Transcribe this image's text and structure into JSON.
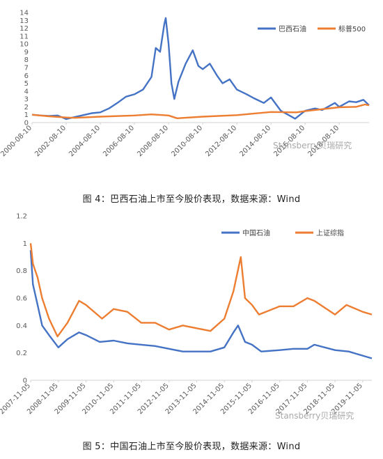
{
  "chart_data": [
    {
      "type": "line",
      "caption": "图 4：巴西石油上市至今股价表现，数据来源：Wind",
      "watermark": "Stansberry贝瑞研究",
      "xlabel": "",
      "ylabel": "",
      "ylim": [
        0,
        14
      ],
      "yticks": [
        0,
        1,
        2,
        3,
        4,
        5,
        6,
        7,
        8,
        9,
        10,
        11,
        12,
        13,
        14
      ],
      "xlim": [
        "2000-08-10",
        "2020-05-10"
      ],
      "xticks": [
        "2000-08-10",
        "2002-08-10",
        "2004-08-10",
        "2006-08-10",
        "2008-08-10",
        "2010-08-10",
        "2012-08-10",
        "2014-08-10",
        "2016-08-10",
        "2018-08-10"
      ],
      "grid": false,
      "legend_position": "top-right",
      "series": [
        {
          "name": "巴西石油",
          "color": "#4472C4",
          "points": [
            [
              "2000-08-10",
              1.0
            ],
            [
              "2001-02-10",
              0.9
            ],
            [
              "2001-08-10",
              0.85
            ],
            [
              "2002-02-10",
              0.9
            ],
            [
              "2002-08-10",
              0.45
            ],
            [
              "2003-02-10",
              0.7
            ],
            [
              "2003-08-10",
              0.95
            ],
            [
              "2004-02-10",
              1.2
            ],
            [
              "2004-08-10",
              1.3
            ],
            [
              "2005-02-10",
              1.8
            ],
            [
              "2005-08-10",
              2.5
            ],
            [
              "2006-02-10",
              3.3
            ],
            [
              "2006-08-10",
              3.6
            ],
            [
              "2007-02-10",
              4.2
            ],
            [
              "2007-08-10",
              5.8
            ],
            [
              "2007-11-10",
              9.5
            ],
            [
              "2008-02-10",
              9.0
            ],
            [
              "2008-05-10",
              12.5
            ],
            [
              "2008-06-10",
              13.3
            ],
            [
              "2008-08-10",
              10.0
            ],
            [
              "2008-10-10",
              5.0
            ],
            [
              "2008-12-10",
              3.0
            ],
            [
              "2009-03-10",
              5.2
            ],
            [
              "2009-08-10",
              7.5
            ],
            [
              "2010-01-10",
              9.2
            ],
            [
              "2010-05-10",
              7.2
            ],
            [
              "2010-08-10",
              6.8
            ],
            [
              "2011-01-10",
              7.5
            ],
            [
              "2011-06-10",
              6.0
            ],
            [
              "2011-10-10",
              5.0
            ],
            [
              "2012-03-10",
              5.5
            ],
            [
              "2012-08-10",
              4.2
            ],
            [
              "2013-03-10",
              3.6
            ],
            [
              "2013-08-10",
              3.1
            ],
            [
              "2014-03-10",
              2.5
            ],
            [
              "2014-08-10",
              3.2
            ],
            [
              "2015-03-10",
              1.5
            ],
            [
              "2015-08-10",
              1.0
            ],
            [
              "2016-01-10",
              0.5
            ],
            [
              "2016-08-10",
              1.5
            ],
            [
              "2017-03-10",
              1.8
            ],
            [
              "2017-08-10",
              1.6
            ],
            [
              "2018-05-10",
              2.5
            ],
            [
              "2018-08-10",
              2.0
            ],
            [
              "2019-03-10",
              2.7
            ],
            [
              "2019-08-10",
              2.6
            ],
            [
              "2020-01-10",
              2.9
            ],
            [
              "2020-05-10",
              2.2
            ]
          ]
        },
        {
          "name": "标普500",
          "color": "#ED7D31",
          "points": [
            [
              "2000-08-10",
              1.0
            ],
            [
              "2001-08-10",
              0.8
            ],
            [
              "2002-08-10",
              0.65
            ],
            [
              "2003-02-10",
              0.6
            ],
            [
              "2004-08-10",
              0.75
            ],
            [
              "2006-08-10",
              0.9
            ],
            [
              "2007-08-10",
              1.05
            ],
            [
              "2008-08-10",
              0.9
            ],
            [
              "2009-02-10",
              0.55
            ],
            [
              "2010-08-10",
              0.75
            ],
            [
              "2012-08-10",
              0.95
            ],
            [
              "2014-08-10",
              1.35
            ],
            [
              "2016-02-10",
              1.3
            ],
            [
              "2016-08-10",
              1.45
            ],
            [
              "2018-08-10",
              1.95
            ],
            [
              "2019-08-10",
              2.0
            ],
            [
              "2020-02-10",
              2.3
            ],
            [
              "2020-05-10",
              2.2
            ]
          ]
        }
      ]
    },
    {
      "type": "line",
      "caption": "图 5：中国石油上市至今股价表现，数据来源：Wind",
      "watermark": "Stansberry贝瑞研究",
      "xlabel": "",
      "ylabel": "",
      "ylim": [
        0,
        1.2
      ],
      "yticks": [
        0,
        0.2,
        0.4,
        0.6,
        0.8,
        1,
        1.2
      ],
      "xlim": [
        "2007-11-05",
        "2020-03-05"
      ],
      "xticks": [
        "2007-11-05",
        "2008-11-05",
        "2009-11-05",
        "2010-11-05",
        "2011-11-05",
        "2012-11-05",
        "2013-11-05",
        "2014-11-05",
        "2015-11-05",
        "2016-11-05",
        "2017-11-05",
        "2018-11-05",
        "2019-11-05"
      ],
      "grid": false,
      "legend_position": "top-right",
      "series": [
        {
          "name": "中国石油",
          "color": "#4472C4",
          "points": [
            [
              "2007-11-05",
              0.95
            ],
            [
              "2007-12-05",
              0.7
            ],
            [
              "2008-02-05",
              0.55
            ],
            [
              "2008-04-05",
              0.4
            ],
            [
              "2008-07-05",
              0.33
            ],
            [
              "2008-11-05",
              0.24
            ],
            [
              "2009-03-05",
              0.3
            ],
            [
              "2009-08-05",
              0.35
            ],
            [
              "2009-11-05",
              0.33
            ],
            [
              "2010-05-05",
              0.28
            ],
            [
              "2010-11-05",
              0.29
            ],
            [
              "2011-05-05",
              0.27
            ],
            [
              "2011-11-05",
              0.26
            ],
            [
              "2012-05-05",
              0.25
            ],
            [
              "2012-11-05",
              0.23
            ],
            [
              "2013-05-05",
              0.21
            ],
            [
              "2013-11-05",
              0.21
            ],
            [
              "2014-05-05",
              0.21
            ],
            [
              "2014-11-05",
              0.24
            ],
            [
              "2015-03-05",
              0.35
            ],
            [
              "2015-05-05",
              0.4
            ],
            [
              "2015-08-05",
              0.28
            ],
            [
              "2015-11-05",
              0.26
            ],
            [
              "2016-03-05",
              0.21
            ],
            [
              "2016-11-05",
              0.22
            ],
            [
              "2017-05-05",
              0.23
            ],
            [
              "2017-11-05",
              0.23
            ],
            [
              "2018-02-05",
              0.26
            ],
            [
              "2018-11-05",
              0.22
            ],
            [
              "2019-05-05",
              0.21
            ],
            [
              "2019-11-05",
              0.18
            ],
            [
              "2020-03-05",
              0.16
            ]
          ]
        },
        {
          "name": "上证综指",
          "color": "#ED7D31",
          "points": [
            [
              "2007-11-05",
              1.0
            ],
            [
              "2007-12-05",
              0.85
            ],
            [
              "2008-02-05",
              0.75
            ],
            [
              "2008-04-05",
              0.6
            ],
            [
              "2008-07-05",
              0.45
            ],
            [
              "2008-10-25",
              0.32
            ],
            [
              "2009-03-05",
              0.42
            ],
            [
              "2009-08-05",
              0.58
            ],
            [
              "2009-11-05",
              0.55
            ],
            [
              "2010-06-05",
              0.45
            ],
            [
              "2010-11-05",
              0.52
            ],
            [
              "2011-05-05",
              0.5
            ],
            [
              "2011-11-05",
              0.42
            ],
            [
              "2012-05-05",
              0.42
            ],
            [
              "2012-11-05",
              0.37
            ],
            [
              "2013-05-05",
              0.4
            ],
            [
              "2013-11-05",
              0.38
            ],
            [
              "2014-05-05",
              0.36
            ],
            [
              "2014-11-05",
              0.45
            ],
            [
              "2015-03-05",
              0.65
            ],
            [
              "2015-06-10",
              0.9
            ],
            [
              "2015-08-05",
              0.6
            ],
            [
              "2015-11-05",
              0.55
            ],
            [
              "2016-02-05",
              0.48
            ],
            [
              "2016-11-05",
              0.54
            ],
            [
              "2017-05-05",
              0.54
            ],
            [
              "2017-11-05",
              0.6
            ],
            [
              "2018-02-05",
              0.58
            ],
            [
              "2018-11-05",
              0.48
            ],
            [
              "2019-04-05",
              0.55
            ],
            [
              "2019-11-05",
              0.5
            ],
            [
              "2020-03-05",
              0.48
            ]
          ]
        }
      ]
    }
  ]
}
